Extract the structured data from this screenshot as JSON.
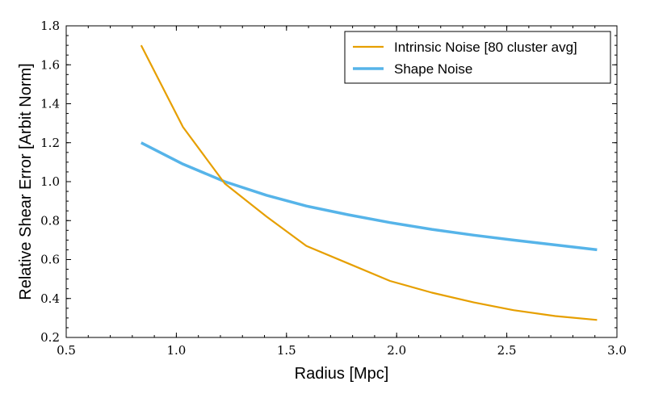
{
  "chart_data": {
    "type": "line",
    "title": "",
    "xlabel": "Radius [Mpc]",
    "ylabel": "Relative Shear Error [Arbit Norm]",
    "xlim": [
      0.5,
      3.0
    ],
    "ylim": [
      0.2,
      1.8
    ],
    "xticks": [
      "0.5",
      "1.0",
      "1.5",
      "2.0",
      "2.5",
      "3.0"
    ],
    "yticks": [
      "0.2",
      "0.4",
      "0.6",
      "0.8",
      "1.0",
      "1.2",
      "1.4",
      "1.6",
      "1.8"
    ],
    "grid": false,
    "legend_position": "top-right",
    "series": [
      {
        "name": "Intrinsic Noise [80 cluster avg]",
        "color": "#E69F00",
        "x": [
          0.84,
          1.03,
          1.22,
          1.41,
          1.59,
          1.78,
          1.97,
          2.16,
          2.35,
          2.53,
          2.72,
          2.91
        ],
        "y": [
          1.7,
          1.28,
          0.99,
          0.82,
          0.67,
          0.58,
          0.49,
          0.43,
          0.38,
          0.34,
          0.31,
          0.29
        ]
      },
      {
        "name": "Shape Noise",
        "color": "#56B4E9",
        "x": [
          0.84,
          1.03,
          1.22,
          1.41,
          1.59,
          1.78,
          1.97,
          2.16,
          2.35,
          2.53,
          2.72,
          2.91
        ],
        "y": [
          1.2,
          1.09,
          1.0,
          0.93,
          0.875,
          0.83,
          0.79,
          0.755,
          0.725,
          0.7,
          0.675,
          0.65
        ]
      }
    ]
  }
}
